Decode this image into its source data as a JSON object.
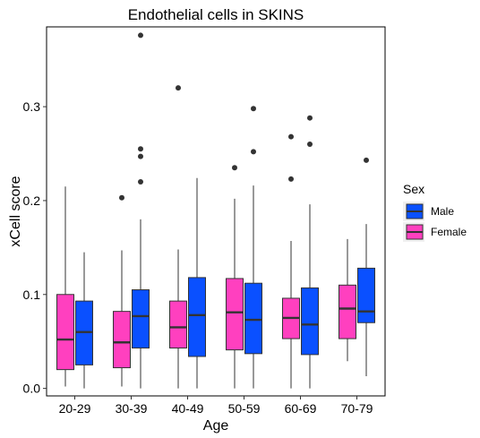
{
  "chart_data": {
    "type": "boxplot",
    "title": "Endothelial cells in SKINS",
    "xlabel": "Age",
    "ylabel": "xCell score",
    "ylim": [
      -0.008,
      0.385
    ],
    "yticks": [
      0.0,
      0.1,
      0.2,
      0.3
    ],
    "ytick_labels": [
      "0.0",
      "0.1",
      "0.2",
      "0.3"
    ],
    "categories": [
      "20-29",
      "30-39",
      "40-49",
      "50-59",
      "60-69",
      "70-79"
    ],
    "legend": {
      "title": "Sex",
      "position": "right",
      "entries": [
        {
          "label": "Male",
          "color": "#0A50FF"
        },
        {
          "label": "Female",
          "color": "#FF40BF"
        }
      ]
    },
    "grid": false,
    "series": [
      {
        "name": "Female",
        "color": "#FF40BF",
        "boxes": [
          {
            "category": "20-29",
            "min": 0.002,
            "q1": 0.02,
            "median": 0.052,
            "q3": 0.1,
            "max": 0.215,
            "outliers": []
          },
          {
            "category": "30-39",
            "min": 0.002,
            "q1": 0.022,
            "median": 0.049,
            "q3": 0.082,
            "max": 0.147,
            "outliers": [
              0.203
            ]
          },
          {
            "category": "40-49",
            "min": 0.0,
            "q1": 0.043,
            "median": 0.065,
            "q3": 0.093,
            "max": 0.148,
            "outliers": [
              0.32
            ]
          },
          {
            "category": "50-59",
            "min": 0.0,
            "q1": 0.041,
            "median": 0.081,
            "q3": 0.117,
            "max": 0.202,
            "outliers": [
              0.235
            ]
          },
          {
            "category": "60-69",
            "min": 0.0,
            "q1": 0.053,
            "median": 0.075,
            "q3": 0.096,
            "max": 0.157,
            "outliers": [
              0.268,
              0.223
            ]
          },
          {
            "category": "70-79",
            "min": 0.029,
            "q1": 0.053,
            "median": 0.085,
            "q3": 0.11,
            "max": 0.159,
            "outliers": []
          }
        ]
      },
      {
        "name": "Male",
        "color": "#0A50FF",
        "boxes": [
          {
            "category": "20-29",
            "min": 0.0,
            "q1": 0.025,
            "median": 0.06,
            "q3": 0.093,
            "max": 0.145,
            "outliers": []
          },
          {
            "category": "30-39",
            "min": 0.0,
            "q1": 0.043,
            "median": 0.077,
            "q3": 0.105,
            "max": 0.18,
            "outliers": [
              0.376,
              0.255,
              0.247,
              0.22
            ]
          },
          {
            "category": "40-49",
            "min": 0.0,
            "q1": 0.034,
            "median": 0.078,
            "q3": 0.118,
            "max": 0.224,
            "outliers": []
          },
          {
            "category": "50-59",
            "min": 0.0,
            "q1": 0.037,
            "median": 0.073,
            "q3": 0.112,
            "max": 0.216,
            "outliers": [
              0.298,
              0.252
            ]
          },
          {
            "category": "60-69",
            "min": 0.0,
            "q1": 0.036,
            "median": 0.068,
            "q3": 0.107,
            "max": 0.196,
            "outliers": [
              0.288,
              0.26
            ]
          },
          {
            "category": "70-79",
            "min": 0.013,
            "q1": 0.07,
            "median": 0.082,
            "q3": 0.128,
            "max": 0.175,
            "outliers": [
              0.243
            ]
          }
        ]
      }
    ]
  }
}
